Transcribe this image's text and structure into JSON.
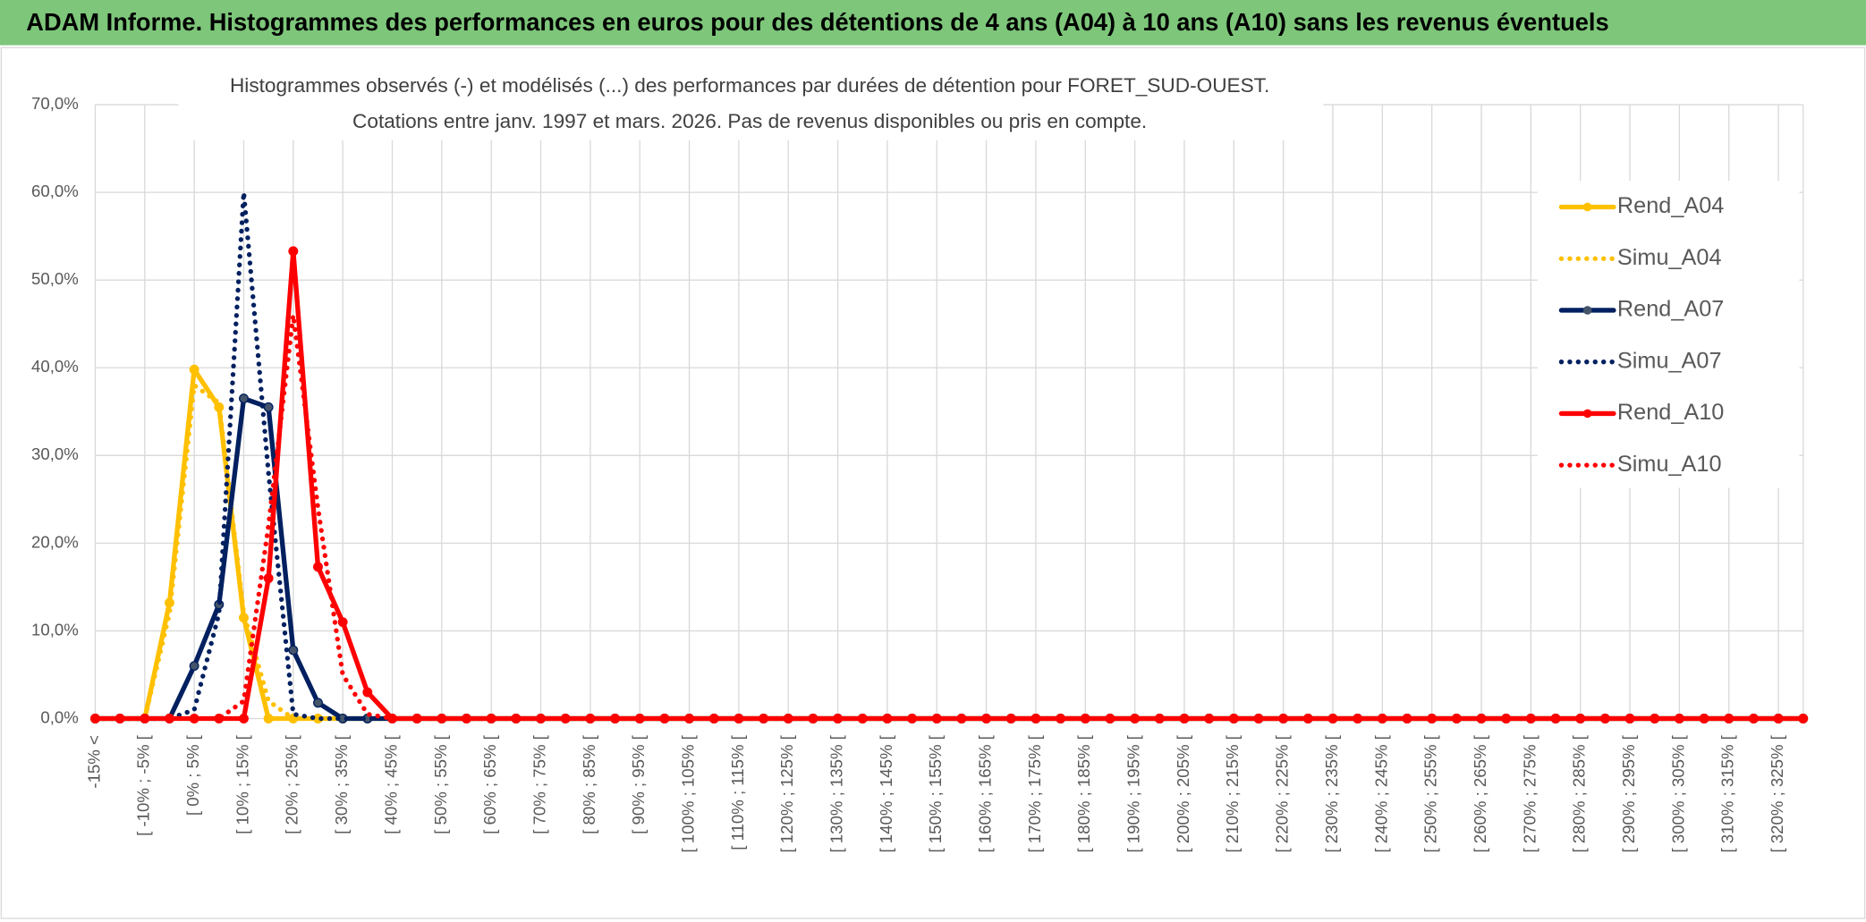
{
  "chart_data": {
    "type": "line",
    "title": "ADAM Informe. Histogrammes des performances en euros pour des détentions de 4 ans (A04) à 10 ans (A10) sans les revenus éventuels",
    "subtitle": [
      "Histogrammes observés (-) et modélisés (...) des performances par durées de détention pour FORET_SUD-OUEST.",
      "Cotations entre janv. 1997 et mars. 2026. Pas de revenus disponibles ou pris en compte."
    ],
    "categories": [
      "-15% <",
      null,
      "[ -10% ; -5% [",
      null,
      "[ 0% ; 5% [",
      null,
      "[ 10% ; 15% [",
      null,
      "[ 20% ; 25% [",
      null,
      "[ 30% ; 35% [",
      null,
      "[ 40% ; 45% [",
      null,
      "[ 50% ; 55% [",
      null,
      "[ 60% ; 65% [",
      null,
      "[ 70% ; 75% [",
      null,
      "[ 80% ; 85% [",
      null,
      "[ 90% ; 95% [",
      null,
      "[ 100% ; 105% [",
      null,
      "[ 110% ; 115% [",
      null,
      "[ 120% ; 125% [",
      null,
      "[ 130% ; 135% [",
      null,
      "[ 140% ; 145% [",
      null,
      "[ 150% ; 155% [",
      null,
      "[ 160% ; 165% [",
      null,
      "[ 170% ; 175% [",
      null,
      "[ 180% ; 185% [",
      null,
      "[ 190% ; 195% [",
      null,
      "[ 200% ; 205% [",
      null,
      "[ 210% ; 215% [",
      null,
      "[ 220% ; 225% [",
      null,
      "[ 230% ; 235% [",
      null,
      "[ 240% ; 245% [",
      null,
      "[ 250% ; 255% [",
      null,
      "[ 260% ; 265% [",
      null,
      "[ 270% ; 275% [",
      null,
      "[ 280% ; 285% [",
      null,
      "[ 290% ; 295% [",
      null,
      "[ 300% ; 305% [",
      null,
      "[ 310% ; 315% [",
      null,
      "[ 320% ; 325% [",
      null
    ],
    "series": [
      {
        "name": "Rend_A04",
        "color": "#ffc000",
        "line_style": "solid",
        "marker": true,
        "values": [
          0,
          0,
          0,
          13.2,
          39.8,
          35.5,
          11.5,
          0,
          0,
          0,
          0,
          0,
          0,
          0,
          0,
          0,
          0,
          0,
          0,
          0,
          0,
          0,
          0,
          0,
          0,
          0,
          0,
          0,
          0,
          0,
          0,
          0,
          0,
          0,
          0,
          0,
          0,
          0,
          0,
          0,
          0,
          0,
          0,
          0,
          0,
          0,
          0,
          0,
          0,
          0,
          0,
          0,
          0,
          0,
          0,
          0,
          0,
          0,
          0,
          0,
          0,
          0,
          0,
          0,
          0,
          0,
          0,
          0,
          0,
          0
        ]
      },
      {
        "name": "Simu_A04",
        "color": "#ffc000",
        "line_style": "dotted",
        "marker": false,
        "values": [
          0,
          0,
          0,
          12,
          38,
          36,
          12,
          2,
          0,
          0,
          0,
          0,
          0,
          0,
          0,
          0,
          0,
          0,
          0,
          0,
          0,
          0,
          0,
          0,
          0,
          0,
          0,
          0,
          0,
          0,
          0,
          0,
          0,
          0,
          0,
          0,
          0,
          0,
          0,
          0,
          0,
          0,
          0,
          0,
          0,
          0,
          0,
          0,
          0,
          0,
          0,
          0,
          0,
          0,
          0,
          0,
          0,
          0,
          0,
          0,
          0,
          0,
          0,
          0,
          0,
          0,
          0,
          0,
          0,
          0
        ]
      },
      {
        "name": "Rend_A07",
        "color": "#002060",
        "line_style": "solid",
        "marker": true,
        "values": [
          0,
          0,
          0,
          0,
          6,
          13,
          36.5,
          35.5,
          7.8,
          1.8,
          0,
          0,
          0,
          0,
          0,
          0,
          0,
          0,
          0,
          0,
          0,
          0,
          0,
          0,
          0,
          0,
          0,
          0,
          0,
          0,
          0,
          0,
          0,
          0,
          0,
          0,
          0,
          0,
          0,
          0,
          0,
          0,
          0,
          0,
          0,
          0,
          0,
          0,
          0,
          0,
          0,
          0,
          0,
          0,
          0,
          0,
          0,
          0,
          0,
          0,
          0,
          0,
          0,
          0,
          0,
          0,
          0,
          0,
          0,
          0
        ]
      },
      {
        "name": "Simu_A07",
        "color": "#002060",
        "line_style": "dotted",
        "marker": false,
        "values": [
          0,
          0,
          0,
          0,
          1,
          12,
          60,
          28,
          0.5,
          0,
          0,
          0,
          0,
          0,
          0,
          0,
          0,
          0,
          0,
          0,
          0,
          0,
          0,
          0,
          0,
          0,
          0,
          0,
          0,
          0,
          0,
          0,
          0,
          0,
          0,
          0,
          0,
          0,
          0,
          0,
          0,
          0,
          0,
          0,
          0,
          0,
          0,
          0,
          0,
          0,
          0,
          0,
          0,
          0,
          0,
          0,
          0,
          0,
          0,
          0,
          0,
          0,
          0,
          0,
          0,
          0,
          0,
          0,
          0,
          0
        ]
      },
      {
        "name": "Rend_A10",
        "color": "#ff0000",
        "line_style": "solid",
        "marker": true,
        "values": [
          0,
          0,
          0,
          0,
          0,
          0,
          0,
          16,
          53.3,
          17.3,
          11,
          3,
          0,
          0,
          0,
          0,
          0,
          0,
          0,
          0,
          0,
          0,
          0,
          0,
          0,
          0,
          0,
          0,
          0,
          0,
          0,
          0,
          0,
          0,
          0,
          0,
          0,
          0,
          0,
          0,
          0,
          0,
          0,
          0,
          0,
          0,
          0,
          0,
          0,
          0,
          0,
          0,
          0,
          0,
          0,
          0,
          0,
          0,
          0,
          0,
          0,
          0,
          0,
          0,
          0,
          0,
          0,
          0,
          0,
          0
        ]
      },
      {
        "name": "Simu_A10",
        "color": "#ff0000",
        "line_style": "dotted",
        "marker": false,
        "values": [
          0,
          0,
          0,
          0,
          0,
          0,
          2,
          22,
          46,
          24,
          5,
          0.5,
          0,
          0,
          0,
          0,
          0,
          0,
          0,
          0,
          0,
          0,
          0,
          0,
          0,
          0,
          0,
          0,
          0,
          0,
          0,
          0,
          0,
          0,
          0,
          0,
          0,
          0,
          0,
          0,
          0,
          0,
          0,
          0,
          0,
          0,
          0,
          0,
          0,
          0,
          0,
          0,
          0,
          0,
          0,
          0,
          0,
          0,
          0,
          0,
          0,
          0,
          0,
          0,
          0,
          0,
          0,
          0,
          0,
          0
        ]
      }
    ],
    "ylim": [
      0,
      70
    ],
    "yticks": [
      {
        "value": 0,
        "label": "0,0%"
      },
      {
        "value": 10,
        "label": "10,0%"
      },
      {
        "value": 20,
        "label": "20,0%"
      },
      {
        "value": 30,
        "label": "30,0%"
      },
      {
        "value": 40,
        "label": "40,0%"
      },
      {
        "value": 50,
        "label": "50,0%"
      },
      {
        "value": 60,
        "label": "60,0%"
      },
      {
        "value": 70,
        "label": "70,0%"
      }
    ],
    "grid": true,
    "legend": "right"
  }
}
